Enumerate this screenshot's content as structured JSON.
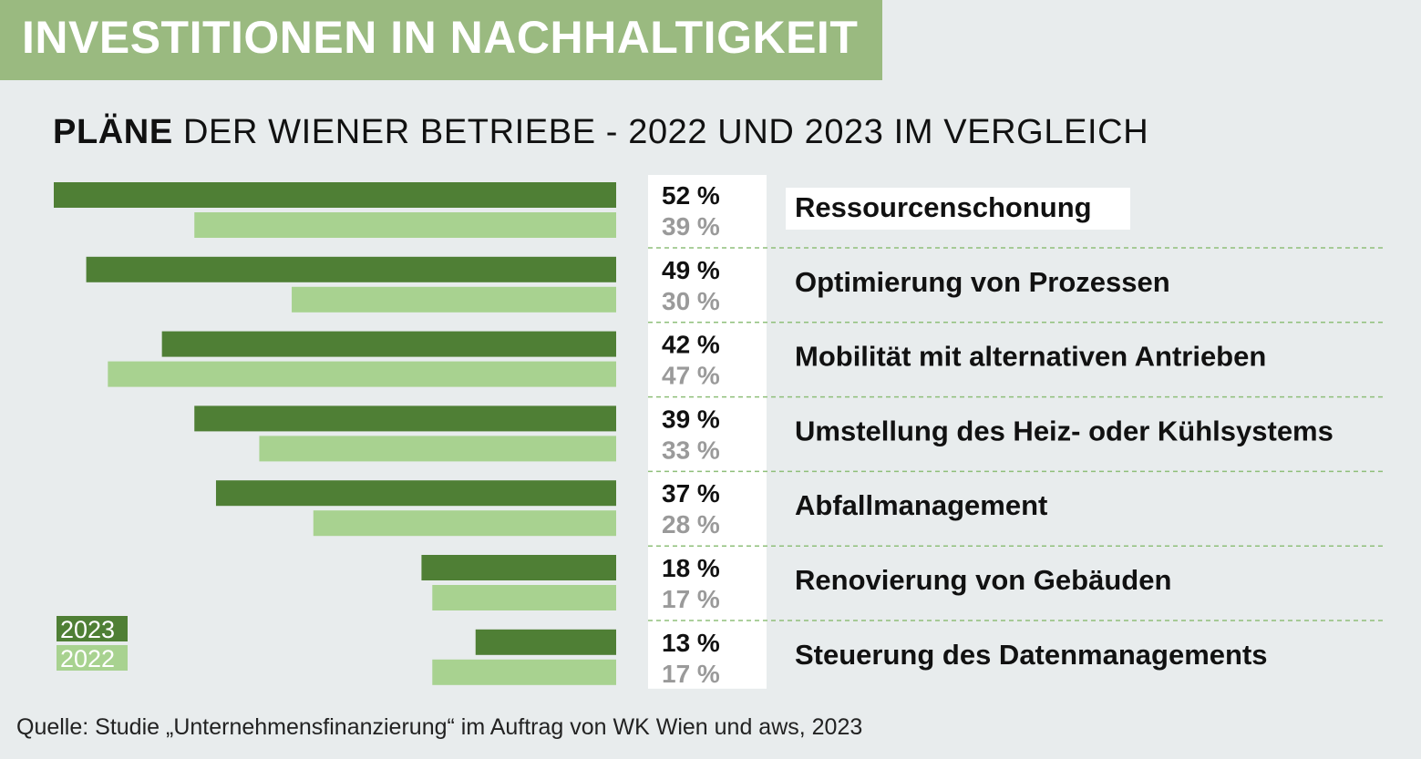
{
  "header": {
    "title": "INVESTITIONEN IN NACHHALTIGKEIT",
    "subtitle_bold": "PLÄNE",
    "subtitle_rest": " DER WIENER BETRIEBE - 2022 UND 2023 IM VERGLEICH"
  },
  "colors": {
    "banner": "#9aba80",
    "bar_2023": "#4f7f35",
    "bar_2022": "#a8d290",
    "label_2023": "#111111",
    "label_2022": "#9a9a9a",
    "divider": "#8fbf7a",
    "background": "#e8eced"
  },
  "chart_data": {
    "type": "bar",
    "orientation": "horizontal",
    "title": "INVESTITIONEN IN NACHHALTIGKEIT",
    "subtitle": "PLÄNE DER WIENER BETRIEBE - 2022 UND 2023 IM VERGLEICH",
    "xlim": [
      0,
      52
    ],
    "unit": "%",
    "categories": [
      "Ressourcenschonung",
      "Optimierung von Prozessen",
      "Mobilität mit alternativen Antrieben",
      "Umstellung des Heiz- oder Kühlsystems",
      "Abfallmanagement",
      "Renovierung von Gebäuden",
      "Steuerung des Datenmanagements"
    ],
    "series": [
      {
        "name": "2023",
        "values": [
          52,
          49,
          42,
          39,
          37,
          18,
          13
        ],
        "labels": [
          "52 %",
          "49 %",
          "42 %",
          "39 %",
          "37 %",
          "18 %",
          "13 %"
        ]
      },
      {
        "name": "2022",
        "values": [
          39,
          30,
          47,
          33,
          28,
          17,
          17
        ],
        "labels": [
          "39 %",
          "30 %",
          "47 %",
          "33 %",
          "28 %",
          "17 %",
          "17 %"
        ]
      }
    ],
    "legend": [
      "2023",
      "2022"
    ],
    "legend_position": "bottom-left"
  },
  "footer": {
    "source": "Quelle: Studie „Unternehmensfinanzierung“ im Auftrag von WK Wien und aws, 2023"
  }
}
